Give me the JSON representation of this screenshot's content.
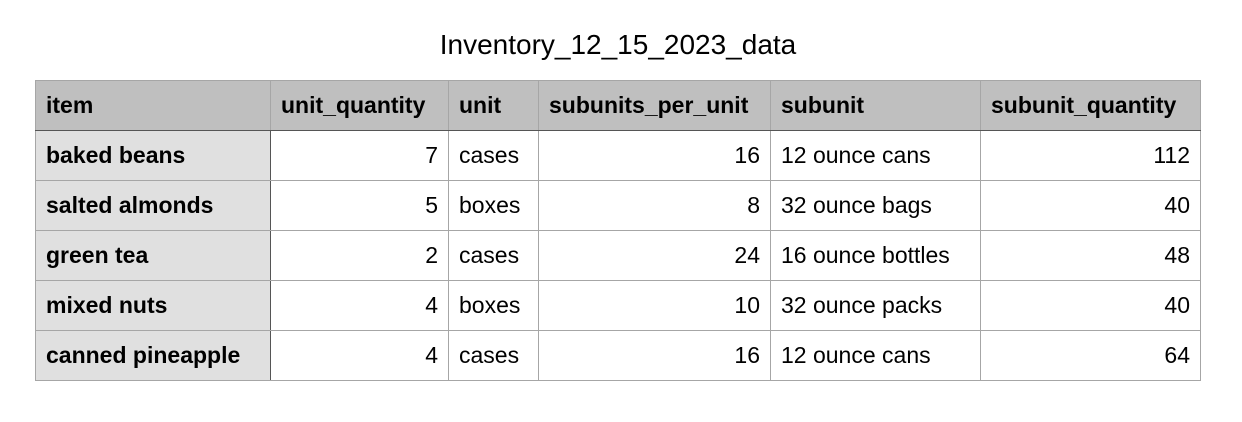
{
  "title": "Inventory_12_15_2023_data",
  "columns": [
    "item",
    "unit_quantity",
    "unit",
    "subunits_per_unit",
    "subunit",
    "subunit_quantity"
  ],
  "rows": [
    {
      "item": "baked beans",
      "unit_quantity": "7",
      "unit": "cases",
      "subunits_per_unit": "16",
      "subunit": "12 ounce cans",
      "subunit_quantity": "112"
    },
    {
      "item": "salted almonds",
      "unit_quantity": "5",
      "unit": "boxes",
      "subunits_per_unit": "8",
      "subunit": "32 ounce bags",
      "subunit_quantity": "40"
    },
    {
      "item": "green tea",
      "unit_quantity": "2",
      "unit": "cases",
      "subunits_per_unit": "24",
      "subunit": "16 ounce bottles",
      "subunit_quantity": "48"
    },
    {
      "item": "mixed nuts",
      "unit_quantity": "4",
      "unit": "boxes",
      "subunits_per_unit": "10",
      "subunit": "32 ounce packs",
      "subunit_quantity": "40"
    },
    {
      "item": "canned pineapple",
      "unit_quantity": "4",
      "unit": "cases",
      "subunits_per_unit": "16",
      "subunit": "12 ounce cans",
      "subunit_quantity": "64"
    }
  ],
  "colors": {
    "header_fill": "#bfbfbf",
    "row_header_fill": "#e0e0e0",
    "grid_line": "#a6a6a6"
  }
}
